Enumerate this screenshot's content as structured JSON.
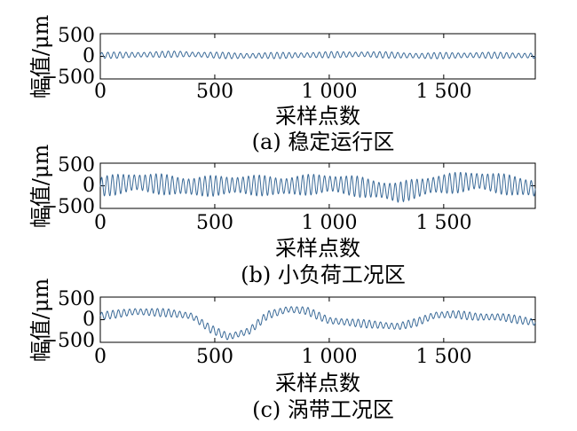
{
  "chart_data": [
    {
      "type": "line",
      "caption": "(a) 稳定运行区",
      "xlabel": "采样点数",
      "ylabel": "幅值/μm",
      "xlim": [
        0,
        1900
      ],
      "ylim": [
        -500,
        500
      ],
      "xticks": [
        0,
        500,
        1000,
        1500
      ],
      "xtick_labels": [
        "0",
        "500",
        "1 000",
        "1 500"
      ],
      "yticks": [
        500,
        0,
        -500
      ],
      "ytick_labels": [
        "500",
        "0",
        "−500"
      ],
      "series": [
        {
          "color": "#3a6a98",
          "carrier_cycles": 72,
          "carrier_amplitude": 70,
          "envelope": [
            [
              0,
              20
            ],
            [
              350,
              50
            ],
            [
              600,
              10
            ],
            [
              800,
              20
            ],
            [
              1150,
              45
            ],
            [
              1400,
              10
            ],
            [
              1650,
              25
            ],
            [
              1900,
              15
            ]
          ]
        }
      ]
    },
    {
      "type": "line",
      "caption": "(b) 小负荷工况区",
      "xlabel": "采样点数",
      "ylabel": "幅值/μm",
      "xlim": [
        0,
        1900
      ],
      "ylim": [
        -500,
        500
      ],
      "xticks": [
        0,
        500,
        1000,
        1500
      ],
      "xtick_labels": [
        "0",
        "500",
        "1 000",
        "1 500"
      ],
      "yticks": [
        500,
        0,
        -500
      ],
      "ytick_labels": [
        "500",
        "0",
        "−500"
      ],
      "series": [
        {
          "color": "#3a6a98",
          "carrier_cycles": 80,
          "carrier_amplitude": 230,
          "envelope": [
            [
              0,
              -20
            ],
            [
              150,
              80
            ],
            [
              400,
              -20
            ],
            [
              600,
              20
            ],
            [
              800,
              -10
            ],
            [
              1000,
              50
            ],
            [
              1100,
              0
            ],
            [
              1300,
              -150
            ],
            [
              1450,
              20
            ],
            [
              1650,
              110
            ],
            [
              1900,
              -60
            ]
          ]
        }
      ]
    },
    {
      "type": "line",
      "caption": "(c) 涡带工况区",
      "xlabel": "采样点数",
      "ylabel": "幅值/μm",
      "xlim": [
        0,
        1900
      ],
      "ylim": [
        -500,
        500
      ],
      "xticks": [
        0,
        500,
        1000,
        1500
      ],
      "xtick_labels": [
        "0",
        "500",
        "1 000",
        "1 500"
      ],
      "yticks": [
        500,
        0,
        -500
      ],
      "ytick_labels": [
        "500",
        "0",
        "−500"
      ],
      "series": [
        {
          "color": "#3a6a98",
          "carrier_cycles": 78,
          "carrier_amplitude": 90,
          "envelope": [
            [
              0,
              80
            ],
            [
              150,
              180
            ],
            [
              300,
              150
            ],
            [
              400,
              80
            ],
            [
              480,
              -200
            ],
            [
              560,
              -380
            ],
            [
              650,
              -250
            ],
            [
              730,
              100
            ],
            [
              820,
              230
            ],
            [
              900,
              200
            ],
            [
              1000,
              -20
            ],
            [
              1200,
              -110
            ],
            [
              1300,
              -150
            ],
            [
              1380,
              -60
            ],
            [
              1460,
              100
            ],
            [
              1550,
              120
            ],
            [
              1650,
              60
            ],
            [
              1750,
              60
            ],
            [
              1900,
              -60
            ]
          ]
        }
      ]
    }
  ]
}
